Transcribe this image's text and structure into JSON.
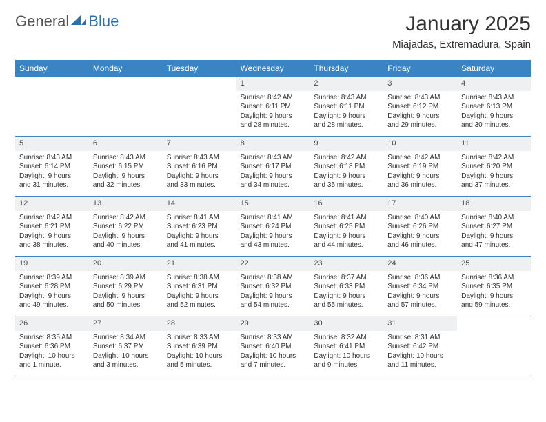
{
  "brand": {
    "part1": "General",
    "part2": "Blue",
    "color1": "#6b6b6b",
    "color2": "#2f6fa8",
    "icon_color": "#2f6fa8"
  },
  "title": "January 2025",
  "location": "Miajadas, Extremadura, Spain",
  "colors": {
    "header_bg": "#3a84c4",
    "header_text": "#ffffff",
    "daynum_bg": "#eef0f2",
    "week_border": "#3a84c4",
    "text": "#333333"
  },
  "day_names": [
    "Sunday",
    "Monday",
    "Tuesday",
    "Wednesday",
    "Thursday",
    "Friday",
    "Saturday"
  ],
  "weeks": [
    [
      {
        "empty": true
      },
      {
        "empty": true
      },
      {
        "empty": true
      },
      {
        "n": "1",
        "sr": "Sunrise: 8:42 AM",
        "ss": "Sunset: 6:11 PM",
        "d1": "Daylight: 9 hours",
        "d2": "and 28 minutes."
      },
      {
        "n": "2",
        "sr": "Sunrise: 8:43 AM",
        "ss": "Sunset: 6:11 PM",
        "d1": "Daylight: 9 hours",
        "d2": "and 28 minutes."
      },
      {
        "n": "3",
        "sr": "Sunrise: 8:43 AM",
        "ss": "Sunset: 6:12 PM",
        "d1": "Daylight: 9 hours",
        "d2": "and 29 minutes."
      },
      {
        "n": "4",
        "sr": "Sunrise: 8:43 AM",
        "ss": "Sunset: 6:13 PM",
        "d1": "Daylight: 9 hours",
        "d2": "and 30 minutes."
      }
    ],
    [
      {
        "n": "5",
        "sr": "Sunrise: 8:43 AM",
        "ss": "Sunset: 6:14 PM",
        "d1": "Daylight: 9 hours",
        "d2": "and 31 minutes."
      },
      {
        "n": "6",
        "sr": "Sunrise: 8:43 AM",
        "ss": "Sunset: 6:15 PM",
        "d1": "Daylight: 9 hours",
        "d2": "and 32 minutes."
      },
      {
        "n": "7",
        "sr": "Sunrise: 8:43 AM",
        "ss": "Sunset: 6:16 PM",
        "d1": "Daylight: 9 hours",
        "d2": "and 33 minutes."
      },
      {
        "n": "8",
        "sr": "Sunrise: 8:43 AM",
        "ss": "Sunset: 6:17 PM",
        "d1": "Daylight: 9 hours",
        "d2": "and 34 minutes."
      },
      {
        "n": "9",
        "sr": "Sunrise: 8:42 AM",
        "ss": "Sunset: 6:18 PM",
        "d1": "Daylight: 9 hours",
        "d2": "and 35 minutes."
      },
      {
        "n": "10",
        "sr": "Sunrise: 8:42 AM",
        "ss": "Sunset: 6:19 PM",
        "d1": "Daylight: 9 hours",
        "d2": "and 36 minutes."
      },
      {
        "n": "11",
        "sr": "Sunrise: 8:42 AM",
        "ss": "Sunset: 6:20 PM",
        "d1": "Daylight: 9 hours",
        "d2": "and 37 minutes."
      }
    ],
    [
      {
        "n": "12",
        "sr": "Sunrise: 8:42 AM",
        "ss": "Sunset: 6:21 PM",
        "d1": "Daylight: 9 hours",
        "d2": "and 38 minutes."
      },
      {
        "n": "13",
        "sr": "Sunrise: 8:42 AM",
        "ss": "Sunset: 6:22 PM",
        "d1": "Daylight: 9 hours",
        "d2": "and 40 minutes."
      },
      {
        "n": "14",
        "sr": "Sunrise: 8:41 AM",
        "ss": "Sunset: 6:23 PM",
        "d1": "Daylight: 9 hours",
        "d2": "and 41 minutes."
      },
      {
        "n": "15",
        "sr": "Sunrise: 8:41 AM",
        "ss": "Sunset: 6:24 PM",
        "d1": "Daylight: 9 hours",
        "d2": "and 43 minutes."
      },
      {
        "n": "16",
        "sr": "Sunrise: 8:41 AM",
        "ss": "Sunset: 6:25 PM",
        "d1": "Daylight: 9 hours",
        "d2": "and 44 minutes."
      },
      {
        "n": "17",
        "sr": "Sunrise: 8:40 AM",
        "ss": "Sunset: 6:26 PM",
        "d1": "Daylight: 9 hours",
        "d2": "and 46 minutes."
      },
      {
        "n": "18",
        "sr": "Sunrise: 8:40 AM",
        "ss": "Sunset: 6:27 PM",
        "d1": "Daylight: 9 hours",
        "d2": "and 47 minutes."
      }
    ],
    [
      {
        "n": "19",
        "sr": "Sunrise: 8:39 AM",
        "ss": "Sunset: 6:28 PM",
        "d1": "Daylight: 9 hours",
        "d2": "and 49 minutes."
      },
      {
        "n": "20",
        "sr": "Sunrise: 8:39 AM",
        "ss": "Sunset: 6:29 PM",
        "d1": "Daylight: 9 hours",
        "d2": "and 50 minutes."
      },
      {
        "n": "21",
        "sr": "Sunrise: 8:38 AM",
        "ss": "Sunset: 6:31 PM",
        "d1": "Daylight: 9 hours",
        "d2": "and 52 minutes."
      },
      {
        "n": "22",
        "sr": "Sunrise: 8:38 AM",
        "ss": "Sunset: 6:32 PM",
        "d1": "Daylight: 9 hours",
        "d2": "and 54 minutes."
      },
      {
        "n": "23",
        "sr": "Sunrise: 8:37 AM",
        "ss": "Sunset: 6:33 PM",
        "d1": "Daylight: 9 hours",
        "d2": "and 55 minutes."
      },
      {
        "n": "24",
        "sr": "Sunrise: 8:36 AM",
        "ss": "Sunset: 6:34 PM",
        "d1": "Daylight: 9 hours",
        "d2": "and 57 minutes."
      },
      {
        "n": "25",
        "sr": "Sunrise: 8:36 AM",
        "ss": "Sunset: 6:35 PM",
        "d1": "Daylight: 9 hours",
        "d2": "and 59 minutes."
      }
    ],
    [
      {
        "n": "26",
        "sr": "Sunrise: 8:35 AM",
        "ss": "Sunset: 6:36 PM",
        "d1": "Daylight: 10 hours",
        "d2": "and 1 minute."
      },
      {
        "n": "27",
        "sr": "Sunrise: 8:34 AM",
        "ss": "Sunset: 6:37 PM",
        "d1": "Daylight: 10 hours",
        "d2": "and 3 minutes."
      },
      {
        "n": "28",
        "sr": "Sunrise: 8:33 AM",
        "ss": "Sunset: 6:39 PM",
        "d1": "Daylight: 10 hours",
        "d2": "and 5 minutes."
      },
      {
        "n": "29",
        "sr": "Sunrise: 8:33 AM",
        "ss": "Sunset: 6:40 PM",
        "d1": "Daylight: 10 hours",
        "d2": "and 7 minutes."
      },
      {
        "n": "30",
        "sr": "Sunrise: 8:32 AM",
        "ss": "Sunset: 6:41 PM",
        "d1": "Daylight: 10 hours",
        "d2": "and 9 minutes."
      },
      {
        "n": "31",
        "sr": "Sunrise: 8:31 AM",
        "ss": "Sunset: 6:42 PM",
        "d1": "Daylight: 10 hours",
        "d2": "and 11 minutes."
      },
      {
        "empty": true
      }
    ]
  ]
}
